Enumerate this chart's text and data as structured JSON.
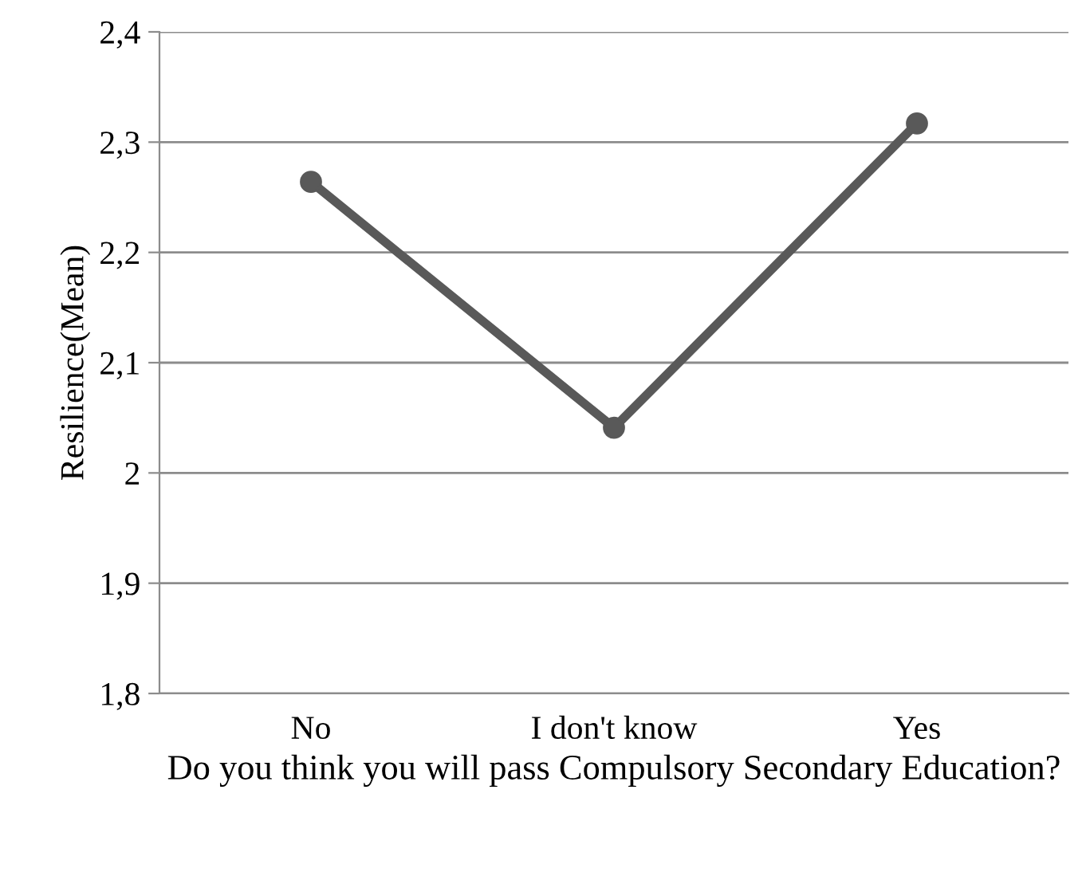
{
  "chart_data": {
    "type": "line",
    "xlabel": "Do you think you will pass Compulsory Secondary Education?",
    "ylabel": "Resilience(Mean)",
    "categories": [
      "No",
      "I don't know",
      "Yes"
    ],
    "series": [
      {
        "color": "#595959",
        "values": [
          2.264,
          2.041,
          2.317
        ]
      }
    ],
    "ylim": [
      1.8,
      2.4
    ],
    "yticks": [
      {
        "value": 1.8,
        "label": "1,8"
      },
      {
        "value": 1.9,
        "label": "1,9"
      },
      {
        "value": 2,
        "label": "2"
      },
      {
        "value": 2.1,
        "label": "2,1"
      },
      {
        "value": 2.2,
        "label": "2,2"
      },
      {
        "value": 2.3,
        "label": "2,3"
      },
      {
        "value": 2.4,
        "label": "2,4"
      }
    ],
    "grid": "y",
    "marker": "circle",
    "line_style": "solid",
    "legend": false
  }
}
